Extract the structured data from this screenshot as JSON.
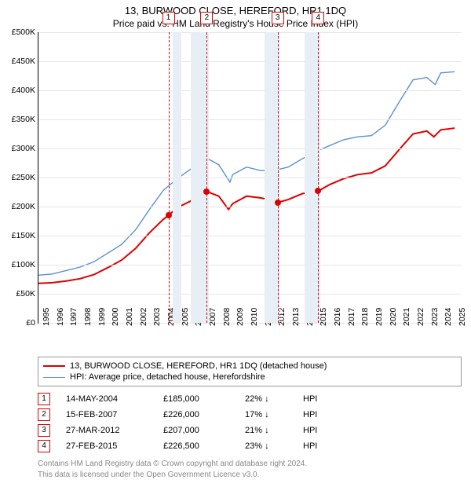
{
  "title": "13, BURWOOD CLOSE, HEREFORD, HR1 1DQ",
  "subtitle": "Price paid vs. HM Land Registry's House Price Index (HPI)",
  "chart": {
    "type": "line",
    "x_min": 1995,
    "x_max": 2025.5,
    "y_min": 0,
    "y_max": 500000,
    "y_ticks": [
      0,
      50000,
      100000,
      150000,
      200000,
      250000,
      300000,
      350000,
      400000,
      450000,
      500000
    ],
    "y_tick_labels": [
      "£0",
      "£50K",
      "£100K",
      "£150K",
      "£200K",
      "£250K",
      "£300K",
      "£350K",
      "£400K",
      "£450K",
      "£500K"
    ],
    "x_ticks": [
      1995,
      1996,
      1997,
      1998,
      1999,
      2000,
      2001,
      2002,
      2003,
      2004,
      2005,
      2006,
      2007,
      2008,
      2009,
      2010,
      2011,
      2012,
      2013,
      2014,
      2015,
      2016,
      2017,
      2018,
      2019,
      2020,
      2021,
      2022,
      2023,
      2024,
      2025
    ],
    "grid_color": "#e6e6e6",
    "background": "#ffffff",
    "bands": [
      {
        "from": 2004.7,
        "to": 2005.3,
        "color": "#e8eef6"
      },
      {
        "from": 2006.0,
        "to": 2007.3,
        "color": "#e8eef6"
      },
      {
        "from": 2011.3,
        "to": 2012.4,
        "color": "#e8eef6"
      },
      {
        "from": 2014.2,
        "to": 2015.3,
        "color": "#e8eef6"
      }
    ],
    "vdash_color": "#dd0000",
    "markers": [
      {
        "num": "1",
        "x": 2004.37,
        "y": 185000
      },
      {
        "num": "2",
        "x": 2007.13,
        "y": 226000
      },
      {
        "num": "3",
        "x": 2012.24,
        "y": 207000
      },
      {
        "num": "4",
        "x": 2015.16,
        "y": 226500
      }
    ],
    "series": [
      {
        "name": "subject",
        "color": "#dd0000",
        "width": 2,
        "points": [
          [
            1995,
            68000
          ],
          [
            1996,
            69000
          ],
          [
            1997,
            72000
          ],
          [
            1998,
            76000
          ],
          [
            1999,
            83000
          ],
          [
            2000,
            95000
          ],
          [
            2001,
            108000
          ],
          [
            2002,
            128000
          ],
          [
            2003,
            155000
          ],
          [
            2004,
            178000
          ],
          [
            2004.37,
            185000
          ],
          [
            2005,
            198000
          ],
          [
            2006,
            210000
          ],
          [
            2007,
            228000
          ],
          [
            2007.13,
            226000
          ],
          [
            2008,
            218000
          ],
          [
            2008.7,
            195000
          ],
          [
            2009,
            205000
          ],
          [
            2010,
            218000
          ],
          [
            2011,
            215000
          ],
          [
            2012,
            210000
          ],
          [
            2012.24,
            207000
          ],
          [
            2013,
            212000
          ],
          [
            2014,
            222000
          ],
          [
            2015,
            228000
          ],
          [
            2015.16,
            226500
          ],
          [
            2016,
            238000
          ],
          [
            2017,
            248000
          ],
          [
            2018,
            255000
          ],
          [
            2019,
            258000
          ],
          [
            2020,
            270000
          ],
          [
            2021,
            298000
          ],
          [
            2022,
            325000
          ],
          [
            2023,
            330000
          ],
          [
            2023.5,
            320000
          ],
          [
            2024,
            332000
          ],
          [
            2025,
            335000
          ]
        ]
      },
      {
        "name": "hpi",
        "color": "#5b8fd6",
        "width": 1.4,
        "points": [
          [
            1995,
            82000
          ],
          [
            1996,
            84000
          ],
          [
            1997,
            90000
          ],
          [
            1998,
            96000
          ],
          [
            1999,
            105000
          ],
          [
            2000,
            120000
          ],
          [
            2001,
            135000
          ],
          [
            2002,
            160000
          ],
          [
            2003,
            195000
          ],
          [
            2004,
            228000
          ],
          [
            2005,
            248000
          ],
          [
            2006,
            265000
          ],
          [
            2007,
            285000
          ],
          [
            2008,
            272000
          ],
          [
            2008.8,
            242000
          ],
          [
            2009,
            255000
          ],
          [
            2010,
            268000
          ],
          [
            2011,
            262000
          ],
          [
            2012,
            262000
          ],
          [
            2013,
            268000
          ],
          [
            2014,
            282000
          ],
          [
            2015,
            295000
          ],
          [
            2016,
            305000
          ],
          [
            2017,
            315000
          ],
          [
            2018,
            320000
          ],
          [
            2019,
            322000
          ],
          [
            2020,
            340000
          ],
          [
            2021,
            380000
          ],
          [
            2022,
            418000
          ],
          [
            2023,
            422000
          ],
          [
            2023.6,
            410000
          ],
          [
            2024,
            430000
          ],
          [
            2025,
            432000
          ]
        ]
      }
    ]
  },
  "legend": {
    "items": [
      {
        "color": "#dd0000",
        "width": 2,
        "label": "13, BURWOOD CLOSE, HEREFORD, HR1 1DQ (detached house)"
      },
      {
        "color": "#5b8fd6",
        "width": 1.4,
        "label": "HPI: Average price, detached house, Herefordshire"
      }
    ]
  },
  "transactions": [
    {
      "num": "1",
      "date": "14-MAY-2004",
      "price": "£185,000",
      "delta": "22% ↓",
      "suffix": "HPI"
    },
    {
      "num": "2",
      "date": "15-FEB-2007",
      "price": "£226,000",
      "delta": "17% ↓",
      "suffix": "HPI"
    },
    {
      "num": "3",
      "date": "27-MAR-2012",
      "price": "£207,000",
      "delta": "21% ↓",
      "suffix": "HPI"
    },
    {
      "num": "4",
      "date": "27-FEB-2015",
      "price": "£226,500",
      "delta": "23% ↓",
      "suffix": "HPI"
    }
  ],
  "attribution_l1": "Contains HM Land Registry data © Crown copyright and database right 2024.",
  "attribution_l2": "This data is licensed under the Open Government Licence v3.0."
}
